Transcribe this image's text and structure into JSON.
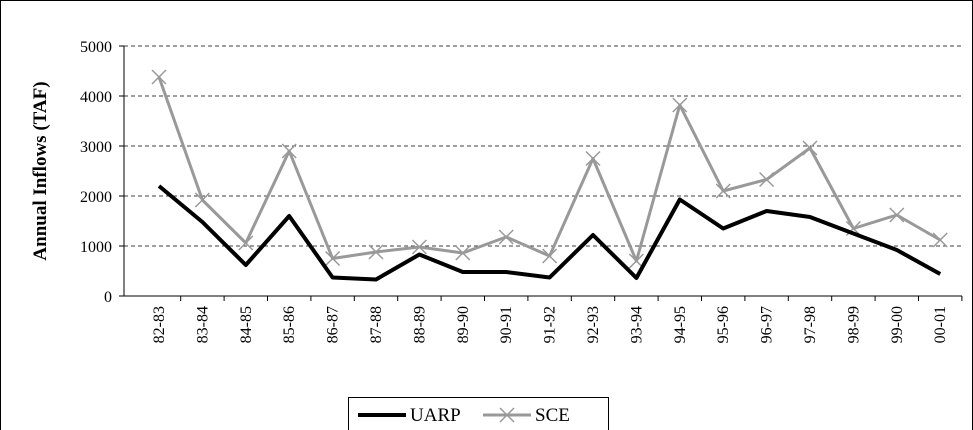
{
  "chart_data": {
    "type": "line",
    "y_label": "Annual Inflows (TAF)",
    "categories": [
      "82-83",
      "83-84",
      "84-85",
      "85-86",
      "86-87",
      "87-88",
      "88-89",
      "89-90",
      "90-91",
      "91-92",
      "92-93",
      "93-94",
      "94-95",
      "95-96",
      "96-97",
      "97-98",
      "98-99",
      "99-00",
      "00-01"
    ],
    "series": [
      {
        "name": "UARP",
        "color": "#000000",
        "marker": "none",
        "values": [
          2200,
          1480,
          620,
          1600,
          370,
          330,
          830,
          480,
          480,
          370,
          1220,
          360,
          1930,
          1350,
          1700,
          1580,
          1250,
          920,
          440
        ]
      },
      {
        "name": "SCE",
        "color": "#999999",
        "marker": "x",
        "values": [
          4380,
          1920,
          1060,
          2900,
          750,
          880,
          980,
          860,
          1180,
          800,
          2750,
          700,
          3820,
          2100,
          2330,
          2960,
          1350,
          1620,
          1120
        ]
      }
    ],
    "ylim": [
      0,
      5000
    ],
    "yticks": [
      0,
      1000,
      2000,
      3000,
      4000,
      5000
    ],
    "grid": true,
    "legend": "bottom"
  }
}
